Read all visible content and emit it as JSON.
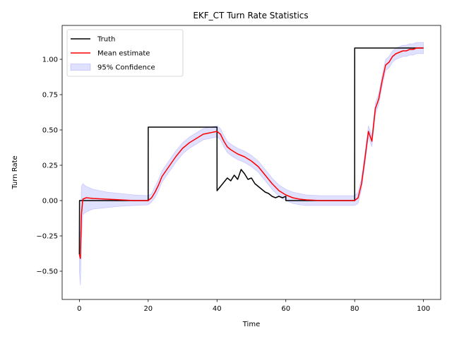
{
  "chart_data": {
    "type": "line",
    "title": "EKF_CT Turn Rate Statistics",
    "xlabel": "Time",
    "ylabel": "Turn Rate",
    "xlim": [
      -5,
      105
    ],
    "ylim": [
      -0.7,
      1.24
    ],
    "xticks": [
      0,
      20,
      40,
      60,
      80,
      100
    ],
    "yticks": [
      -0.5,
      -0.25,
      0.0,
      0.25,
      0.5,
      0.75,
      1.0
    ],
    "xtick_labels": [
      "0",
      "20",
      "40",
      "60",
      "80",
      "100"
    ],
    "ytick_labels": [
      "−0.50",
      "−0.25",
      "0.00",
      "0.25",
      "0.50",
      "0.75",
      "1.00"
    ],
    "legend_position": "upper-left",
    "grid": false,
    "series": [
      {
        "name": "Truth",
        "color": "#000000",
        "x": [
          0,
          0.05,
          0.1,
          1,
          20,
          20.01,
          40,
          40.01,
          41,
          42,
          43,
          44,
          45,
          46,
          47,
          48,
          49,
          50,
          51,
          52,
          53,
          54,
          55,
          56,
          57,
          58,
          59,
          60,
          60.01,
          80,
          80.01,
          100
        ],
        "y": [
          -0.38,
          0,
          0,
          0,
          0,
          0.52,
          0.52,
          0.07,
          0.1,
          0.13,
          0.16,
          0.14,
          0.18,
          0.15,
          0.22,
          0.19,
          0.15,
          0.16,
          0.12,
          0.1,
          0.08,
          0.06,
          0.05,
          0.03,
          0.02,
          0.03,
          0.02,
          0.03,
          0.0,
          0.0,
          1.08,
          1.08
        ]
      },
      {
        "name": "Mean estimate",
        "color": "#ff0000",
        "x": [
          0,
          0.3,
          0.6,
          1,
          2,
          4,
          8,
          12,
          16,
          20,
          21,
          22,
          23,
          24,
          26,
          28,
          30,
          32,
          34,
          36,
          38,
          40,
          41,
          42,
          43,
          44,
          46,
          48,
          50,
          52,
          54,
          56,
          58,
          60,
          62,
          64,
          66,
          70,
          75,
          80,
          81,
          82,
          83,
          84,
          85,
          86,
          87,
          88,
          89,
          90,
          91,
          92,
          93,
          94,
          95,
          96,
          97,
          98,
          99,
          100
        ],
        "y": [
          -0.38,
          -0.41,
          -0.1,
          0.01,
          0.02,
          0.015,
          0.01,
          0.005,
          0.0,
          0.0,
          0.02,
          0.06,
          0.11,
          0.17,
          0.24,
          0.31,
          0.37,
          0.41,
          0.44,
          0.47,
          0.48,
          0.49,
          0.47,
          0.42,
          0.38,
          0.36,
          0.33,
          0.31,
          0.28,
          0.24,
          0.18,
          0.12,
          0.07,
          0.04,
          0.02,
          0.01,
          0.005,
          0.0,
          0.0,
          0.0,
          0.02,
          0.12,
          0.3,
          0.49,
          0.42,
          0.65,
          0.72,
          0.85,
          0.96,
          0.98,
          1.02,
          1.04,
          1.05,
          1.06,
          1.06,
          1.07,
          1.07,
          1.08,
          1.08,
          1.08
        ]
      },
      {
        "name": "95% Confidence",
        "color": "#0000ff",
        "fill_opacity": 0.12,
        "x": [
          0,
          0.3,
          0.6,
          1,
          2,
          4,
          8,
          12,
          16,
          20,
          21,
          22,
          23,
          24,
          26,
          28,
          30,
          32,
          34,
          36,
          38,
          40,
          41,
          42,
          43,
          44,
          46,
          48,
          50,
          52,
          54,
          56,
          58,
          60,
          62,
          64,
          66,
          70,
          75,
          80,
          81,
          82,
          83,
          84,
          85,
          86,
          87,
          88,
          89,
          90,
          91,
          92,
          93,
          94,
          95,
          96,
          97,
          98,
          99,
          100
        ],
        "lower": [
          -0.5,
          -0.6,
          -0.3,
          -0.1,
          -0.08,
          -0.06,
          -0.05,
          -0.04,
          -0.035,
          -0.03,
          -0.01,
          0.02,
          0.07,
          0.13,
          0.2,
          0.27,
          0.33,
          0.37,
          0.4,
          0.43,
          0.44,
          0.45,
          0.43,
          0.38,
          0.34,
          0.32,
          0.29,
          0.27,
          0.24,
          0.2,
          0.14,
          0.08,
          0.03,
          0.0,
          -0.02,
          -0.03,
          -0.035,
          -0.035,
          -0.035,
          -0.035,
          -0.02,
          0.08,
          0.26,
          0.45,
          0.38,
          0.61,
          0.68,
          0.81,
          0.92,
          0.94,
          0.98,
          1.0,
          1.01,
          1.02,
          1.02,
          1.03,
          1.03,
          1.04,
          1.04,
          1.04
        ],
        "upper": [
          -0.26,
          -0.22,
          0.1,
          0.12,
          0.1,
          0.08,
          0.06,
          0.05,
          0.04,
          0.035,
          0.05,
          0.1,
          0.15,
          0.21,
          0.28,
          0.35,
          0.41,
          0.45,
          0.48,
          0.51,
          0.52,
          0.53,
          0.51,
          0.46,
          0.42,
          0.4,
          0.37,
          0.35,
          0.32,
          0.28,
          0.22,
          0.16,
          0.11,
          0.08,
          0.06,
          0.05,
          0.04,
          0.035,
          0.035,
          0.035,
          0.06,
          0.16,
          0.34,
          0.53,
          0.46,
          0.69,
          0.76,
          0.89,
          1.0,
          1.02,
          1.06,
          1.08,
          1.09,
          1.1,
          1.1,
          1.11,
          1.11,
          1.12,
          1.12,
          1.12
        ]
      }
    ]
  }
}
